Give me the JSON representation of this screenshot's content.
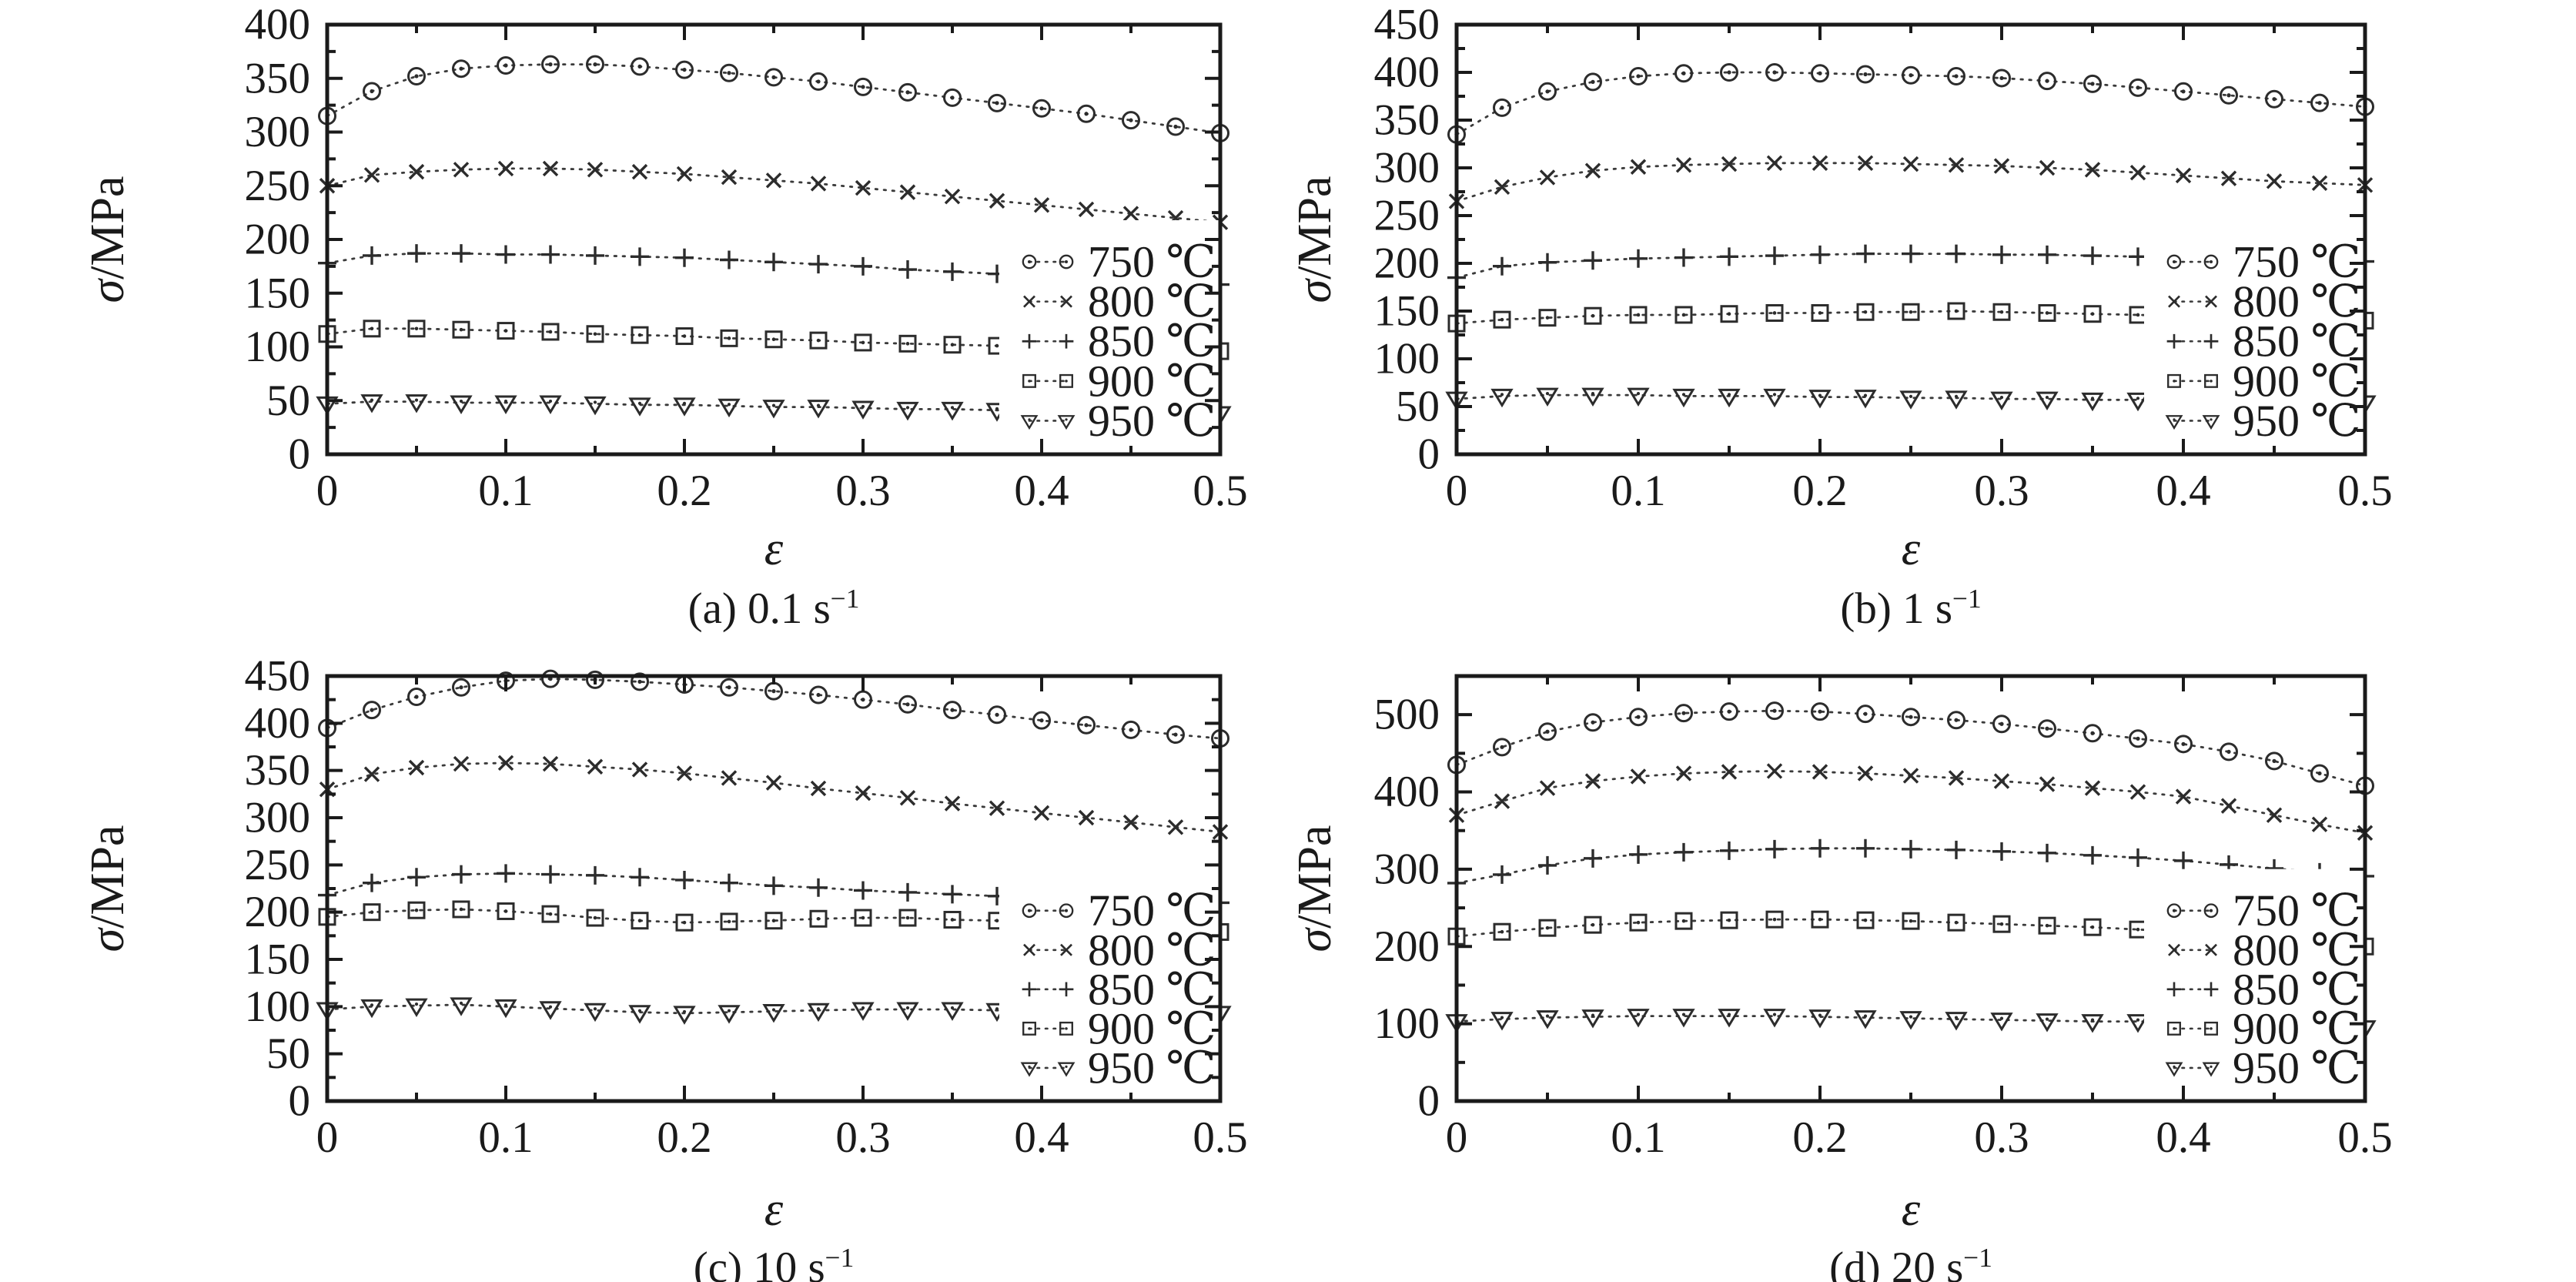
{
  "figure": {
    "background": "#ffffff",
    "ink": "#1a1a1a",
    "curve_color": "#3a3a3a",
    "marker_color": "#2c2c2c"
  },
  "chart_data": [
    {
      "id": "a",
      "type": "line",
      "caption": "(a) 0.1 s",
      "caption_sup": "−1",
      "strain_rate": "0.1 s⁻¹",
      "xlabel": "ε",
      "ylabel": "σ/MPa",
      "xlim": [
        0,
        0.5
      ],
      "ylim": [
        0,
        400
      ],
      "xtick_step": 0.1,
      "xtick_minor_step": 0.05,
      "ytick_step": 50,
      "ytick_minor_step": 25,
      "xtick_labels": [
        "0",
        "0.1",
        "0.2",
        "0.3",
        "0.4",
        "0.5"
      ],
      "ytick_labels": [
        "0",
        "50",
        "100",
        "150",
        "200",
        "250",
        "300",
        "350",
        "400"
      ],
      "grid": false,
      "legend_position": "inside-right",
      "x": [
        0,
        0.025,
        0.05,
        0.075,
        0.1,
        0.125,
        0.15,
        0.175,
        0.2,
        0.225,
        0.25,
        0.275,
        0.3,
        0.325,
        0.35,
        0.375,
        0.4,
        0.425,
        0.45,
        0.475,
        0.5
      ],
      "series": [
        {
          "name": "750 ℃",
          "marker": "circle-dot",
          "values": [
            315,
            338,
            352,
            359,
            362,
            363,
            363,
            361,
            358,
            355,
            351,
            347,
            342,
            337,
            332,
            327,
            322,
            317,
            311,
            305,
            299
          ]
        },
        {
          "name": "800 ℃",
          "marker": "x",
          "values": [
            250,
            260,
            263,
            265,
            266,
            266,
            265,
            263,
            261,
            258,
            255,
            252,
            248,
            244,
            240,
            236,
            232,
            228,
            224,
            220,
            216
          ]
        },
        {
          "name": "850 ℃",
          "marker": "plus",
          "values": [
            178,
            185,
            187,
            187,
            186,
            186,
            185,
            184,
            183,
            181,
            179,
            177,
            175,
            172,
            170,
            168,
            166,
            164,
            162,
            160,
            158
          ]
        },
        {
          "name": "900 ℃",
          "marker": "square-dot",
          "values": [
            112,
            117,
            117,
            116,
            115,
            114,
            112,
            111,
            110,
            108,
            107,
            106,
            104,
            103,
            102,
            101,
            100,
            99,
            98,
            97,
            96
          ]
        },
        {
          "name": "950 ℃",
          "marker": "triangle-dot",
          "values": [
            47,
            49,
            49,
            48,
            48,
            48,
            47,
            46,
            46,
            45,
            44,
            44,
            43,
            42,
            42,
            41,
            41,
            40,
            40,
            39,
            38
          ]
        }
      ]
    },
    {
      "id": "b",
      "type": "line",
      "caption": "(b) 1 s",
      "caption_sup": "−1",
      "strain_rate": "1 s⁻¹",
      "xlabel": "ε",
      "ylabel": "σ/MPa",
      "xlim": [
        0,
        0.5
      ],
      "ylim": [
        0,
        450
      ],
      "xtick_step": 0.1,
      "xtick_minor_step": 0.05,
      "ytick_step": 50,
      "ytick_minor_step": 25,
      "xtick_labels": [
        "0",
        "0.1",
        "0.2",
        "0.3",
        "0.4",
        "0.5"
      ],
      "ytick_labels": [
        "0",
        "50",
        "100",
        "150",
        "200",
        "250",
        "300",
        "350",
        "400",
        "450"
      ],
      "grid": false,
      "legend_position": "inside-right",
      "x": [
        0,
        0.025,
        0.05,
        0.075,
        0.1,
        0.125,
        0.15,
        0.175,
        0.2,
        0.225,
        0.25,
        0.275,
        0.3,
        0.325,
        0.35,
        0.375,
        0.4,
        0.425,
        0.45,
        0.475,
        0.5
      ],
      "series": [
        {
          "name": "750 ℃",
          "marker": "circle-dot",
          "values": [
            335,
            363,
            380,
            390,
            396,
            399,
            400,
            400,
            399,
            398,
            397,
            396,
            394,
            391,
            388,
            384,
            380,
            376,
            372,
            368,
            364
          ]
        },
        {
          "name": "800 ℃",
          "marker": "x",
          "values": [
            265,
            280,
            290,
            297,
            301,
            303,
            304,
            305,
            305,
            305,
            304,
            303,
            302,
            300,
            298,
            295,
            292,
            289,
            286,
            284,
            282
          ]
        },
        {
          "name": "850 ℃",
          "marker": "plus",
          "values": [
            185,
            197,
            201,
            203,
            205,
            206,
            207,
            208,
            209,
            210,
            210,
            210,
            209,
            209,
            208,
            207,
            206,
            205,
            204,
            203,
            202
          ]
        },
        {
          "name": "900 ℃",
          "marker": "square-dot",
          "values": [
            137,
            141,
            143,
            145,
            146,
            146,
            147,
            148,
            148,
            149,
            149,
            150,
            149,
            148,
            147,
            146,
            145,
            144,
            143,
            142,
            140
          ]
        },
        {
          "name": "950 ℃",
          "marker": "triangle-dot",
          "values": [
            58,
            61,
            62,
            62,
            62,
            61,
            61,
            61,
            60,
            60,
            59,
            59,
            58,
            58,
            57,
            57,
            56,
            56,
            55,
            55,
            54
          ]
        }
      ]
    },
    {
      "id": "c",
      "type": "line",
      "caption": "(c) 10 s",
      "caption_sup": "−1",
      "strain_rate": "10 s⁻¹",
      "xlabel": "ε",
      "ylabel": "σ/MPa",
      "xlim": [
        0,
        0.5
      ],
      "ylim": [
        0,
        450
      ],
      "xtick_step": 0.1,
      "xtick_minor_step": 0.05,
      "ytick_step": 50,
      "ytick_minor_step": 25,
      "xtick_labels": [
        "0",
        "0.1",
        "0.2",
        "0.3",
        "0.4",
        "0.5"
      ],
      "ytick_labels": [
        "0",
        "50",
        "100",
        "150",
        "200",
        "250",
        "300",
        "350",
        "400",
        "450"
      ],
      "grid": false,
      "legend_position": "inside-right",
      "x": [
        0,
        0.025,
        0.05,
        0.075,
        0.1,
        0.125,
        0.15,
        0.175,
        0.2,
        0.225,
        0.25,
        0.275,
        0.3,
        0.325,
        0.35,
        0.375,
        0.4,
        0.425,
        0.45,
        0.475,
        0.5
      ],
      "series": [
        {
          "name": "750 ℃",
          "marker": "circle-dot",
          "values": [
            395,
            414,
            428,
            438,
            445,
            447,
            446,
            444,
            441,
            438,
            434,
            430,
            425,
            420,
            414,
            409,
            403,
            398,
            393,
            388,
            384
          ]
        },
        {
          "name": "800 ℃",
          "marker": "x",
          "values": [
            330,
            346,
            353,
            357,
            358,
            357,
            354,
            351,
            347,
            342,
            337,
            331,
            326,
            321,
            315,
            310,
            305,
            300,
            295,
            290,
            285
          ]
        },
        {
          "name": "850 ℃",
          "marker": "plus",
          "values": [
            218,
            231,
            237,
            240,
            241,
            240,
            239,
            237,
            234,
            231,
            228,
            226,
            223,
            221,
            219,
            217,
            215,
            213,
            212,
            211,
            210
          ]
        },
        {
          "name": "900 ℃",
          "marker": "square-dot",
          "values": [
            195,
            200,
            202,
            203,
            201,
            198,
            194,
            191,
            189,
            190,
            191,
            193,
            194,
            194,
            192,
            191,
            189,
            186,
            183,
            181,
            179
          ]
        },
        {
          "name": "950 ℃",
          "marker": "triangle-dot",
          "values": [
            97,
            100,
            101,
            102,
            100,
            98,
            96,
            94,
            93,
            94,
            95,
            96,
            97,
            97,
            97,
            96,
            95,
            95,
            94,
            94,
            93
          ]
        }
      ]
    },
    {
      "id": "d",
      "type": "line",
      "caption": "(d) 20 s",
      "caption_sup": "−1",
      "strain_rate": "20 s⁻¹",
      "xlabel": "ε",
      "ylabel": "σ/MPa",
      "xlim": [
        0,
        0.5
      ],
      "ylim": [
        0,
        550
      ],
      "xtick_step": 0.1,
      "xtick_minor_step": 0.05,
      "ytick_step": 100,
      "ytick_minor_step": 50,
      "xtick_labels": [
        "0",
        "0.1",
        "0.2",
        "0.3",
        "0.4",
        "0.5"
      ],
      "ytick_labels": [
        "0",
        "100",
        "200",
        "300",
        "400",
        "500"
      ],
      "grid": false,
      "legend_position": "inside-right",
      "x": [
        0,
        0.025,
        0.05,
        0.075,
        0.1,
        0.125,
        0.15,
        0.175,
        0.2,
        0.225,
        0.25,
        0.275,
        0.3,
        0.325,
        0.35,
        0.375,
        0.4,
        0.425,
        0.45,
        0.475,
        0.5
      ],
      "series": [
        {
          "name": "750 ℃",
          "marker": "circle-dot",
          "values": [
            435,
            458,
            478,
            490,
            497,
            502,
            504,
            505,
            504,
            501,
            497,
            493,
            488,
            482,
            476,
            469,
            462,
            452,
            440,
            424,
            408
          ]
        },
        {
          "name": "800 ℃",
          "marker": "x",
          "values": [
            370,
            388,
            405,
            414,
            420,
            424,
            426,
            427,
            426,
            424,
            421,
            418,
            414,
            410,
            405,
            400,
            394,
            382,
            370,
            358,
            347
          ]
        },
        {
          "name": "850 ℃",
          "marker": "plus",
          "values": [
            282,
            293,
            305,
            314,
            319,
            322,
            324,
            326,
            327,
            327,
            326,
            325,
            323,
            321,
            318,
            315,
            311,
            306,
            301,
            296,
            291
          ]
        },
        {
          "name": "900 ℃",
          "marker": "square-dot",
          "values": [
            213,
            219,
            224,
            228,
            231,
            233,
            234,
            235,
            235,
            234,
            233,
            231,
            229,
            227,
            225,
            222,
            219,
            215,
            210,
            205,
            200
          ]
        },
        {
          "name": "950 ℃",
          "marker": "triangle-dot",
          "values": [
            103,
            106,
            108,
            109,
            110,
            110,
            110,
            110,
            109,
            108,
            107,
            106,
            105,
            104,
            103,
            103,
            102,
            101,
            99,
            97,
            95
          ]
        }
      ]
    }
  ]
}
